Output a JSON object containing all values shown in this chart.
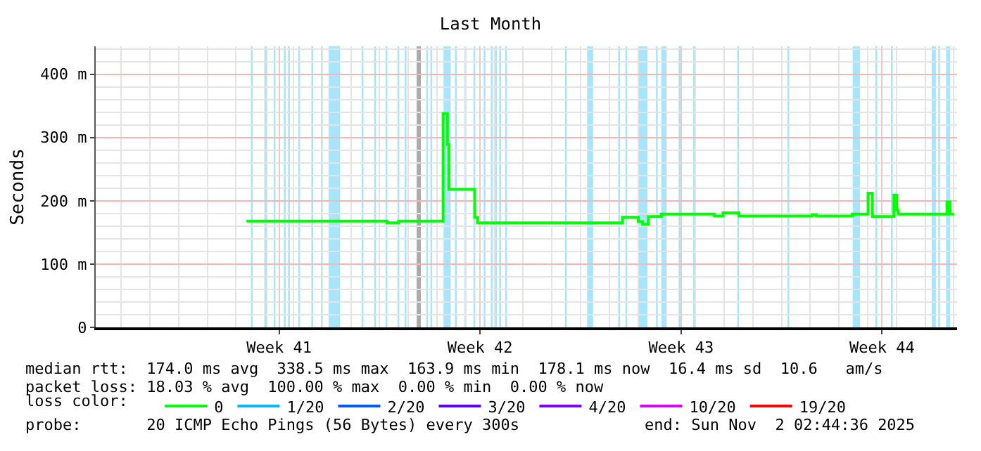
{
  "chart_data": {
    "type": "step",
    "title": "Last Month",
    "ylabel": "Seconds",
    "legend_title": "loss color:",
    "x": [
      "2025-10-08T08:44",
      "2025-10-13T05:08",
      "2025-10-13T06:20",
      "2025-10-13T14:44",
      "2025-10-13T15:56",
      "2025-10-15T03:56",
      "2025-10-15T05:08",
      "2025-10-15T07:32",
      "2025-10-15T08:44",
      "2025-10-15T09:56",
      "2025-10-16T06:20",
      "2025-10-16T07:32",
      "2025-10-16T09:56",
      "2025-10-21T09:56",
      "2025-10-21T11:08",
      "2025-10-21T20:44",
      "2025-10-22T00:20",
      "2025-10-22T03:56",
      "2025-10-22T08:44",
      "2025-10-22T19:32",
      "2025-10-24T13:32",
      "2025-10-24T15:56",
      "2025-10-24T23:08",
      "2025-10-25T11:08",
      "2025-10-25T12:20",
      "2025-10-28T00:20",
      "2025-10-28T01:32",
      "2025-10-28T05:08",
      "2025-10-29T09:56",
      "2025-10-29T11:08",
      "2025-10-29T23:08",
      "2025-10-30T00:20",
      "2025-10-30T01:32",
      "2025-10-30T03:56",
      "2025-10-30T19:32",
      "2025-10-30T21:56",
      "2025-10-31T00:20",
      "2025-10-31T01:32",
      "2025-11-01T17:08",
      "2025-11-01T18:20",
      "2025-11-01T19:32",
      "2025-11-01T20:44",
      "2025-11-02T00:20"
    ],
    "series": [
      {
        "name": "0",
        "color": "#00ff00",
        "values": [
          168,
          168,
          165,
          165,
          168,
          168,
          338,
          338,
          289,
          218,
          218,
          174,
          165,
          165,
          174,
          174,
          167,
          163,
          175,
          179,
          179,
          176,
          181,
          181,
          176,
          176,
          178,
          176,
          176,
          179,
          179,
          212,
          212,
          175,
          175,
          209,
          185,
          179,
          179,
          198,
          198,
          179,
          179
        ]
      },
      {
        "name": "1/20",
        "color": "#00b8ff",
        "values": [
          null,
          null,
          null,
          null,
          null,
          null,
          null,
          null,
          null,
          null,
          null,
          null,
          null,
          null,
          null,
          null,
          null,
          null,
          null,
          null,
          null,
          null,
          null,
          null,
          null,
          null,
          null,
          null,
          null,
          null,
          null,
          null,
          null,
          null,
          null,
          null,
          null,
          null,
          null,
          null,
          null,
          null,
          null
        ]
      },
      {
        "name": "2/20",
        "color": "#0059ff",
        "values": [
          null,
          null,
          null,
          null,
          null,
          null,
          null,
          null,
          null,
          null,
          null,
          null,
          null,
          null,
          null,
          null,
          null,
          null,
          null,
          null,
          null,
          null,
          null,
          null,
          null,
          null,
          null,
          null,
          null,
          null,
          null,
          null,
          null,
          null,
          null,
          null,
          null,
          null,
          null,
          null,
          null,
          null,
          null
        ]
      },
      {
        "name": "3/20",
        "color": "#5e00ff",
        "values": [
          null,
          null,
          null,
          null,
          null,
          null,
          null,
          null,
          null,
          null,
          null,
          null,
          null,
          null,
          null,
          null,
          null,
          null,
          null,
          null,
          null,
          null,
          null,
          null,
          null,
          null,
          null,
          null,
          null,
          null,
          null,
          null,
          null,
          null,
          null,
          null,
          null,
          null,
          null,
          null,
          null,
          null,
          null
        ]
      },
      {
        "name": "4/20",
        "color": "#7e00ff",
        "values": [
          null,
          null,
          null,
          null,
          null,
          null,
          null,
          null,
          null,
          null,
          null,
          null,
          null,
          null,
          null,
          null,
          null,
          null,
          null,
          null,
          null,
          null,
          null,
          null,
          null,
          null,
          null,
          null,
          null,
          null,
          null,
          null,
          null,
          null,
          null,
          null,
          null,
          null,
          null,
          null,
          null,
          null,
          null
        ]
      },
      {
        "name": "10/20",
        "color": "#dd00ff",
        "values": [
          null,
          null,
          null,
          null,
          null,
          null,
          null,
          null,
          null,
          null,
          null,
          null,
          null,
          null,
          null,
          null,
          null,
          null,
          null,
          null,
          null,
          null,
          null,
          null,
          null,
          null,
          null,
          null,
          null,
          null,
          null,
          null,
          null,
          null,
          null,
          null,
          null,
          null,
          null,
          null,
          null,
          null,
          null
        ]
      },
      {
        "name": "19/20",
        "color": "#ff0000",
        "values": [
          null,
          null,
          null,
          null,
          null,
          null,
          null,
          null,
          null,
          null,
          null,
          null,
          null,
          null,
          null,
          null,
          null,
          null,
          null,
          null,
          null,
          null,
          null,
          null,
          null,
          null,
          null,
          null,
          null,
          null,
          null,
          null,
          null,
          null,
          null,
          null,
          null,
          null,
          null,
          null,
          null,
          null,
          null
        ]
      }
    ],
    "xlim": [
      "2025-10-03T02:44",
      "2025-11-02T02:44"
    ],
    "xticks": [
      {
        "value": "2025-10-09T12:00",
        "label": "Week 41"
      },
      {
        "value": "2025-10-16T12:00",
        "label": "Week 42"
      },
      {
        "value": "2025-10-23T12:00",
        "label": "Week 43"
      },
      {
        "value": "2025-10-30T12:00",
        "label": "Week 44"
      }
    ],
    "ylim": [
      0,
      444
    ],
    "yticks": [
      0,
      {
        "value": 100,
        "label": "100 m"
      },
      {
        "value": 200,
        "label": "200 m"
      },
      {
        "value": 300,
        "label": "300 m"
      },
      {
        "value": 400,
        "label": "400 m"
      }
    ],
    "grid": true,
    "legend": "bottom",
    "marker": "none",
    "line_style": "solid",
    "bands": [
      {
        "axis": "x",
        "from": "2025-10-08T12:30",
        "to": "2025-10-08T14:00",
        "color": "#a8e4fa"
      },
      {
        "axis": "x",
        "from": "2025-10-09T00:30",
        "to": "2025-10-09T02:00",
        "color": "#a8e4fa"
      },
      {
        "axis": "x",
        "from": "2025-10-09T07:30",
        "to": "2025-10-09T09:00",
        "color": "#a8e4fa"
      },
      {
        "axis": "x",
        "from": "2025-10-09T16:00",
        "to": "2025-10-09T17:30",
        "color": "#a8e4fa"
      },
      {
        "axis": "x",
        "from": "2025-10-09T19:30",
        "to": "2025-10-09T21:00",
        "color": "#a8e4fa"
      },
      {
        "axis": "x",
        "from": "2025-10-10T04:00",
        "to": "2025-10-10T05:30",
        "color": "#a8e4fa"
      },
      {
        "axis": "x",
        "from": "2025-10-10T15:00",
        "to": "2025-10-10T16:30",
        "color": "#a8e4fa"
      },
      {
        "axis": "x",
        "from": "2025-10-10T23:00",
        "to": "2025-10-11T00:30",
        "color": "#a8e4fa"
      },
      {
        "axis": "x",
        "from": "2025-10-11T05:30",
        "to": "2025-10-11T15:00",
        "color": "#a8e4fa"
      },
      {
        "axis": "x",
        "from": "2025-10-12T09:00",
        "to": "2025-10-12T10:30",
        "color": "#a8e4fa"
      },
      {
        "axis": "x",
        "from": "2025-10-12T19:30",
        "to": "2025-10-12T21:00",
        "color": "#a8e4fa"
      },
      {
        "axis": "x",
        "from": "2025-10-13T05:00",
        "to": "2025-10-13T06:30",
        "color": "#a8e4fa"
      },
      {
        "axis": "x",
        "from": "2025-10-13T15:00",
        "to": "2025-10-13T16:30",
        "color": "#a8e4fa"
      },
      {
        "axis": "x",
        "from": "2025-10-13T21:00",
        "to": "2025-10-13T22:30",
        "color": "#a8e4fa"
      },
      {
        "axis": "x",
        "from": "2025-10-14T07:00",
        "to": "2025-10-14T10:30",
        "color": "#aaaaaa"
      },
      {
        "axis": "x",
        "from": "2025-10-14T15:00",
        "to": "2025-10-14T16:30",
        "color": "#a8e4fa"
      },
      {
        "axis": "x",
        "from": "2025-10-14T18:30",
        "to": "2025-10-14T20:00",
        "color": "#a8e4fa"
      },
      {
        "axis": "x",
        "from": "2025-10-15T05:30",
        "to": "2025-10-15T11:30",
        "color": "#a8e4fa"
      },
      {
        "axis": "x",
        "from": "2025-10-15T15:00",
        "to": "2025-10-15T16:30",
        "color": "#a8e4fa"
      },
      {
        "axis": "x",
        "from": "2025-10-15T23:00",
        "to": "2025-10-16T00:30",
        "color": "#a8e4fa"
      },
      {
        "axis": "x",
        "from": "2025-10-16T06:30",
        "to": "2025-10-16T08:00",
        "color": "#a8e4fa"
      },
      {
        "axis": "x",
        "from": "2025-10-16T15:00",
        "to": "2025-10-16T16:30",
        "color": "#a8e4fa"
      },
      {
        "axis": "x",
        "from": "2025-10-16T21:00",
        "to": "2025-10-16T22:30",
        "color": "#a8e4fa"
      },
      {
        "axis": "x",
        "from": "2025-10-16T23:30",
        "to": "2025-10-17T02:00",
        "color": "#a8e4fa"
      },
      {
        "axis": "x",
        "from": "2025-10-17T04:00",
        "to": "2025-10-17T05:30",
        "color": "#a8e4fa"
      },
      {
        "axis": "x",
        "from": "2025-10-17T09:00",
        "to": "2025-10-17T10:30",
        "color": "#a8e4fa"
      },
      {
        "axis": "x",
        "from": "2025-10-19T11:00",
        "to": "2025-10-19T12:30",
        "color": "#a8e4fa"
      },
      {
        "axis": "x",
        "from": "2025-10-20T05:30",
        "to": "2025-10-20T10:30",
        "color": "#a8e4fa"
      },
      {
        "axis": "x",
        "from": "2025-10-21T07:30",
        "to": "2025-10-21T09:00",
        "color": "#a8e4fa"
      },
      {
        "axis": "x",
        "from": "2025-10-21T13:30",
        "to": "2025-10-21T15:00",
        "color": "#a8e4fa"
      },
      {
        "axis": "x",
        "from": "2025-10-22T00:30",
        "to": "2025-10-22T08:00",
        "color": "#a8e4fa"
      },
      {
        "axis": "x",
        "from": "2025-10-22T15:00",
        "to": "2025-10-22T16:30",
        "color": "#a8e4fa"
      },
      {
        "axis": "x",
        "from": "2025-10-22T19:30",
        "to": "2025-10-22T23:30",
        "color": "#a8e4fa"
      },
      {
        "axis": "x",
        "from": "2025-10-23T10:00",
        "to": "2025-10-23T11:30",
        "color": "#a8e4fa"
      },
      {
        "axis": "x",
        "from": "2025-10-23T22:00",
        "to": "2025-10-23T23:30",
        "color": "#a8e4fa"
      },
      {
        "axis": "x",
        "from": "2025-10-25T11:00",
        "to": "2025-10-25T12:30",
        "color": "#a8e4fa"
      },
      {
        "axis": "x",
        "from": "2025-10-27T05:00",
        "to": "2025-10-27T06:30",
        "color": "#a8e4fa"
      },
      {
        "axis": "x",
        "from": "2025-10-29T11:30",
        "to": "2025-10-29T17:30",
        "color": "#a8e4fa"
      },
      {
        "axis": "x",
        "from": "2025-10-30T06:30",
        "to": "2025-10-30T08:00",
        "color": "#a8e4fa"
      },
      {
        "axis": "x",
        "from": "2025-10-30T19:30",
        "to": "2025-10-30T21:00",
        "color": "#a8e4fa"
      },
      {
        "axis": "x",
        "from": "2025-11-01T05:30",
        "to": "2025-11-01T09:00",
        "color": "#a8e4fa"
      },
      {
        "axis": "x",
        "from": "2025-11-01T11:00",
        "to": "2025-11-01T12:30",
        "color": "#a8e4fa"
      },
      {
        "axis": "x",
        "from": "2025-11-01T17:30",
        "to": "2025-11-01T21:00",
        "color": "#a8e4fa"
      }
    ],
    "annotations": [
      "median rtt:  174.0 ms avg  338.5 ms max  163.9 ms min  178.1 ms now  16.4 ms sd  10.6   am/s",
      "packet loss: 18.03 % avg  100.00 % max  0.00 % min  0.00 % now",
      "probe:       20 ICMP Echo Pings (56 Bytes) every 300s",
      "end: Sun Nov  2 02:44:36 2025"
    ]
  }
}
